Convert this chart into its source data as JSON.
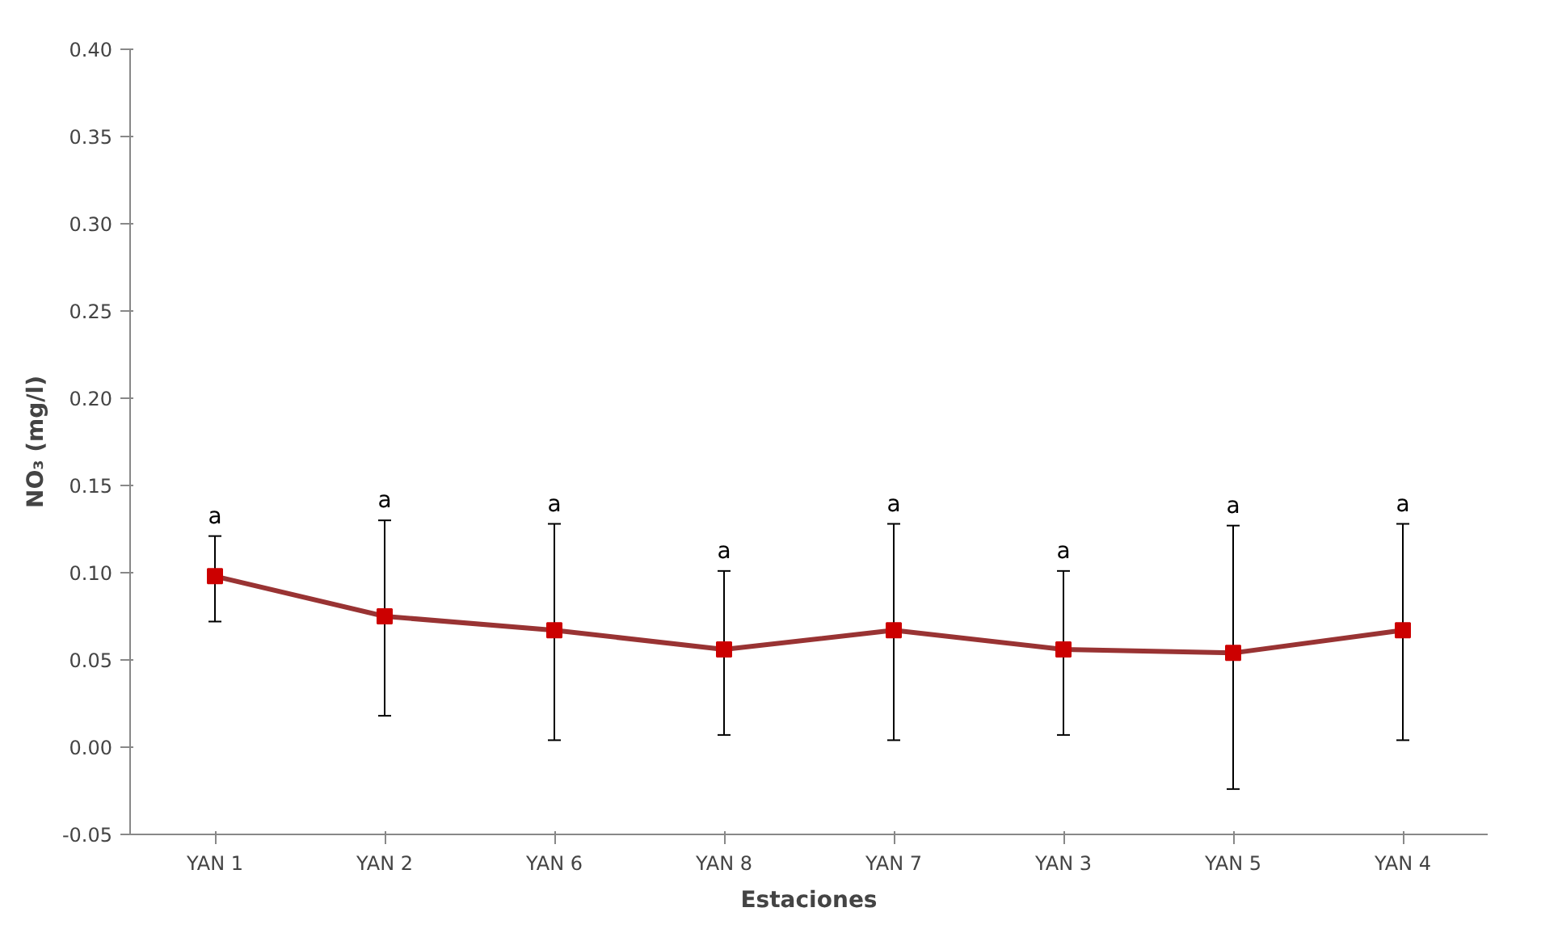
{
  "chart_data": {
    "type": "line",
    "xlabel": "Estaciones",
    "ylabel": "NO₃ (mg/l)",
    "categories": [
      "YAN 1",
      "YAN 2",
      "YAN 6",
      "YAN 8",
      "YAN 7",
      "YAN 3",
      "YAN 5",
      "YAN 4"
    ],
    "series": [
      {
        "color": "#993333",
        "values": [
          0.098,
          0.075,
          0.067,
          0.056,
          0.067,
          0.056,
          0.054,
          0.067
        ],
        "errors": [
          [
            0.072,
            0.121
          ],
          [
            0.018,
            0.13
          ],
          [
            0.004,
            0.128
          ],
          [
            0.007,
            0.101
          ],
          [
            0.004,
            0.128
          ],
          [
            0.007,
            0.101
          ],
          [
            -0.024,
            0.127
          ],
          [
            0.004,
            0.128
          ]
        ]
      }
    ],
    "ylim": [
      -0.05,
      0.4
    ],
    "yticks": [
      {
        "value": -0.05,
        "label": "-0.05"
      },
      {
        "value": 0,
        "label": "0.00"
      },
      {
        "value": 0.05,
        "label": "0.05"
      },
      {
        "value": 0.1,
        "label": "0.10"
      },
      {
        "value": 0.15,
        "label": "0.15"
      },
      {
        "value": 0.2,
        "label": "0.20"
      },
      {
        "value": 0.25,
        "label": "0.25"
      },
      {
        "value": 0.3,
        "label": "0.30"
      },
      {
        "value": 0.35,
        "label": "0.35"
      },
      {
        "value": 0.4,
        "label": "0.40"
      }
    ],
    "marker": "square",
    "grid": false,
    "annotations": [
      "a",
      "a",
      "a",
      "a",
      "a",
      "a",
      "a",
      "a"
    ]
  }
}
